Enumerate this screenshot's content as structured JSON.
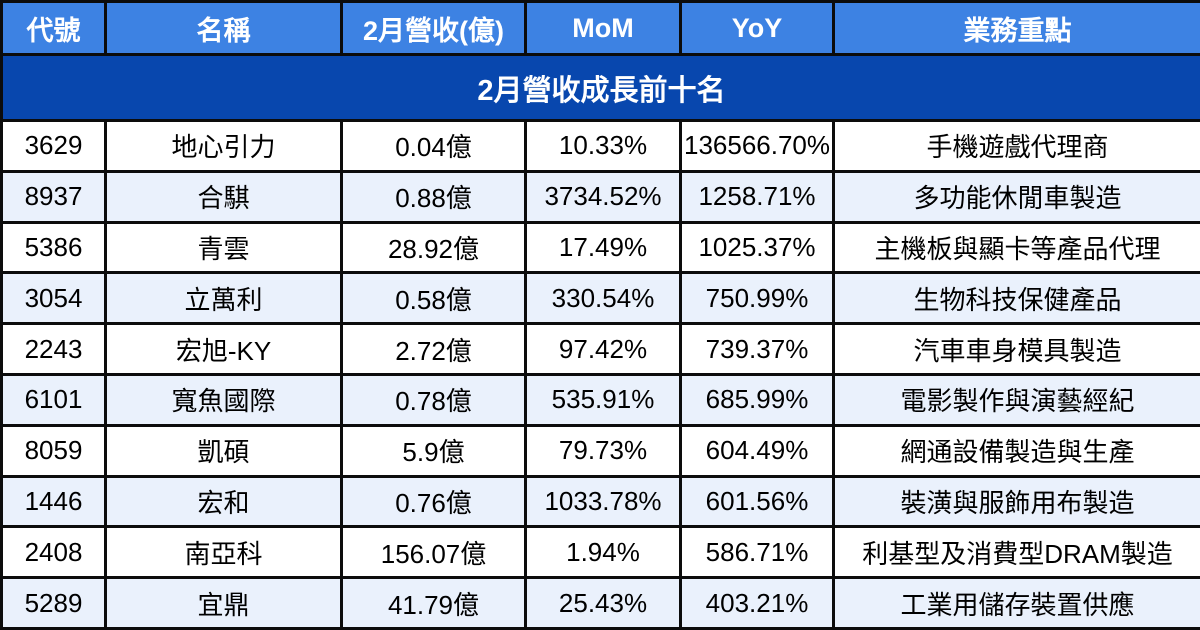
{
  "title": "2月營收成長前十名",
  "colors": {
    "title_bg": "#0847ae",
    "header_bg": "#3d82e3",
    "row_bg": "#ffffff",
    "row_alt_bg": "#eaf1fc",
    "border": "#0c0c0c",
    "header_text": "#ffffff",
    "cell_text": "#000000"
  },
  "chart_data": {
    "type": "table",
    "title": "2月營收成長前十名",
    "columns": [
      "代號",
      "名稱",
      "2月營收(億)",
      "MoM",
      "YoY",
      "業務重點"
    ],
    "rows": [
      [
        "3629",
        "地心引力",
        "0.04億",
        "10.33%",
        "136566.70%",
        "手機遊戲代理商"
      ],
      [
        "8937",
        "合騏",
        "0.88億",
        "3734.52%",
        "1258.71%",
        "多功能休閒車製造"
      ],
      [
        "5386",
        "青雲",
        "28.92億",
        "17.49%",
        "1025.37%",
        "主機板與顯卡等產品代理"
      ],
      [
        "3054",
        "立萬利",
        "0.58億",
        "330.54%",
        "750.99%",
        "生物科技保健產品"
      ],
      [
        "2243",
        "宏旭-KY",
        "2.72億",
        "97.42%",
        "739.37%",
        "汽車車身模具製造"
      ],
      [
        "6101",
        "寬魚國際",
        "0.78億",
        "535.91%",
        "685.99%",
        "電影製作與演藝經紀"
      ],
      [
        "8059",
        "凱碩",
        "5.9億",
        "79.73%",
        "604.49%",
        "網通設備製造與生產"
      ],
      [
        "1446",
        "宏和",
        "0.76億",
        "1033.78%",
        "601.56%",
        "裝潢與服飾用布製造"
      ],
      [
        "2408",
        "南亞科",
        "156.07億",
        "1.94%",
        "586.71%",
        "利基型及消費型DRAM製造"
      ],
      [
        "5289",
        "宜鼎",
        "41.79億",
        "25.43%",
        "403.21%",
        "工業用儲存裝置供應"
      ]
    ]
  }
}
